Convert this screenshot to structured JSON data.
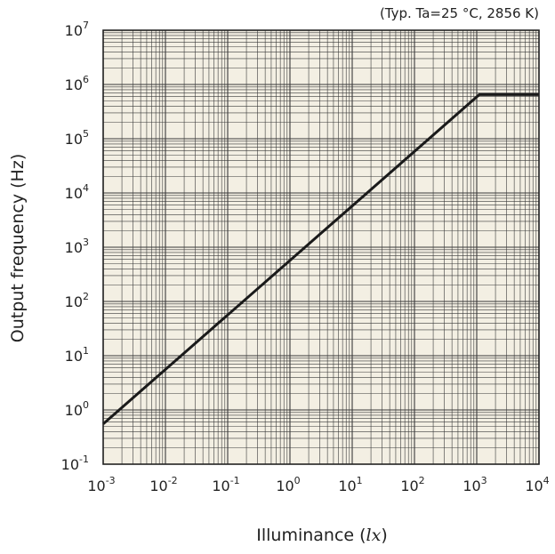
{
  "chart_data": {
    "type": "line",
    "title": "",
    "annotation": "(Typ. Ta=25 °C, 2856 K)",
    "xlabel": "Illuminance (",
    "xlabel_unit": "lx",
    "xlabel_end": ")",
    "ylabel": "Output frequency (Hz)",
    "x_scale": "log",
    "y_scale": "log",
    "xlim": [
      0.001,
      10000
    ],
    "ylim": [
      0.1,
      10000000
    ],
    "grid": true,
    "x_ticks": [
      {
        "base": "10",
        "exp": "-3"
      },
      {
        "base": "10",
        "exp": "-2"
      },
      {
        "base": "10",
        "exp": "-1"
      },
      {
        "base": "10",
        "exp": "0"
      },
      {
        "base": "10",
        "exp": "1"
      },
      {
        "base": "10",
        "exp": "2"
      },
      {
        "base": "10",
        "exp": "3"
      },
      {
        "base": "10",
        "exp": "4"
      }
    ],
    "y_ticks": [
      {
        "base": "10",
        "exp": "-1"
      },
      {
        "base": "10",
        "exp": "0"
      },
      {
        "base": "10",
        "exp": "1"
      },
      {
        "base": "10",
        "exp": "2"
      },
      {
        "base": "10",
        "exp": "3"
      },
      {
        "base": "10",
        "exp": "4"
      },
      {
        "base": "10",
        "exp": "5"
      },
      {
        "base": "10",
        "exp": "6"
      },
      {
        "base": "10",
        "exp": "7"
      }
    ],
    "series": [
      {
        "x": [
          0.001,
          1100,
          10000
        ],
        "y": [
          0.55,
          650000,
          650000
        ]
      }
    ],
    "colors": {
      "plot_background": "#f3efe3",
      "grid": "#3a3a3a",
      "line": "#1a1a1a",
      "frame": "#222222"
    }
  }
}
